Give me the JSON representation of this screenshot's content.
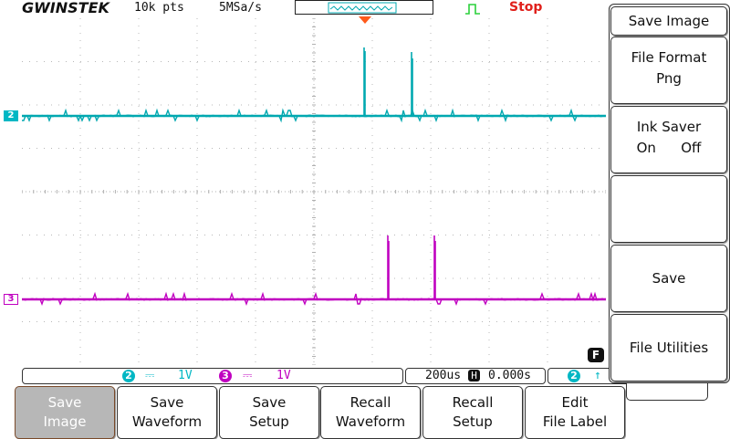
{
  "header": {
    "brand": "GWINSTEK",
    "record_length": "10k pts",
    "sample_rate": "5MSa/s",
    "run_state": "Stop"
  },
  "channels": {
    "ch2": {
      "marker": "2",
      "color": "#00a8b0",
      "scale": "1V",
      "coupling_symbol": "⎓"
    },
    "ch3": {
      "marker": "3",
      "color": "#c000c0",
      "scale": "1V",
      "coupling_symbol": "⎓"
    }
  },
  "timebase": {
    "scale": "200us",
    "delay_symbol": "H",
    "delay": "0.000s"
  },
  "trigger": {
    "source": "2",
    "slope_symbol": "↑"
  },
  "side_menu": {
    "title": "Save Image",
    "file_format": {
      "label": "File Format",
      "value": "Png"
    },
    "ink_saver": {
      "label": "Ink Saver",
      "option_on": "On",
      "option_off": "Off"
    },
    "save": "Save",
    "file_utilities": "File Utilities",
    "f_key": "F"
  },
  "bottom_menu": [
    {
      "line1": "Save",
      "line2": "Image",
      "active": true
    },
    {
      "line1": "Save",
      "line2": "Waveform",
      "active": false
    },
    {
      "line1": "Save",
      "line2": "Setup",
      "active": false
    },
    {
      "line1": "Recall",
      "line2": "Waveform",
      "active": false
    },
    {
      "line1": "Recall",
      "line2": "Setup",
      "active": false
    },
    {
      "line1": "Edit",
      "line2": "File Label",
      "active": false
    }
  ]
}
